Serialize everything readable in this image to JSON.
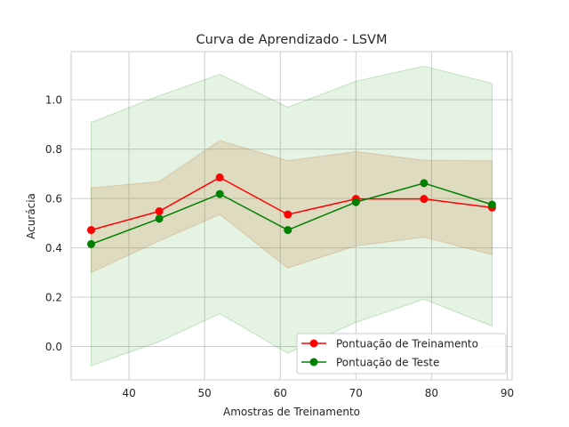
{
  "chart_data": {
    "type": "line",
    "title": "Curva de Aprendizado - LSVM",
    "xlabel": "Amostras de Treinamento",
    "ylabel": "Acurácia",
    "xlim": [
      32.35,
      90.65
    ],
    "ylim": [
      -0.135,
      1.195
    ],
    "xticks": [
      40,
      50,
      60,
      70,
      80,
      90
    ],
    "yticks": [
      0.0,
      0.2,
      0.4,
      0.6,
      0.8,
      1.0
    ],
    "xtick_labels": [
      "40",
      "50",
      "60",
      "70",
      "80",
      "90"
    ],
    "ytick_labels": [
      "0.0",
      "0.2",
      "0.4",
      "0.6",
      "0.8",
      "1.0"
    ],
    "grid": true,
    "legend_position": "lower-right",
    "x": [
      35,
      44,
      52,
      61,
      70,
      79,
      88
    ],
    "series": [
      {
        "name": "Pontuação de Treinamento",
        "color": "#ff0000",
        "band_color": "#d2691e",
        "values": [
          0.472,
          0.548,
          0.685,
          0.535,
          0.598,
          0.598,
          0.563
        ],
        "band_lower": [
          0.3,
          0.428,
          0.535,
          0.318,
          0.408,
          0.443,
          0.372
        ],
        "band_upper": [
          0.643,
          0.668,
          0.835,
          0.753,
          0.79,
          0.755,
          0.752
        ]
      },
      {
        "name": "Pontuação de Teste",
        "color": "#008000",
        "band_color": "#2ca02c",
        "values": [
          0.415,
          0.518,
          0.618,
          0.472,
          0.585,
          0.662,
          0.575
        ],
        "band_lower": [
          -0.078,
          0.02,
          0.133,
          -0.027,
          0.098,
          0.192,
          0.083
        ],
        "band_upper": [
          0.908,
          1.016,
          1.103,
          0.97,
          1.075,
          1.136,
          1.066
        ]
      }
    ]
  }
}
